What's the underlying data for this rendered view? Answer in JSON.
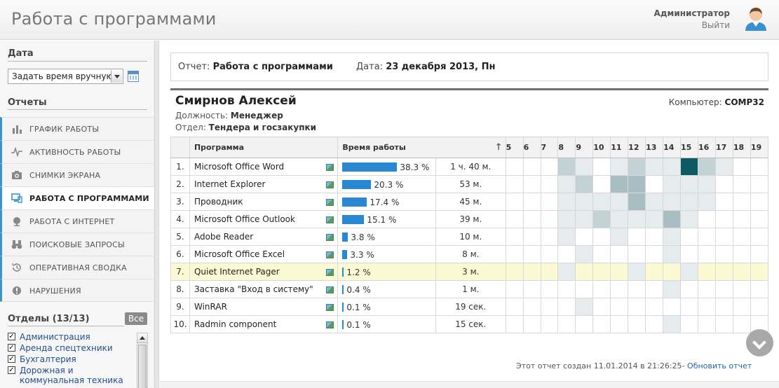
{
  "header": {
    "title": "Работа с программами",
    "user_name": "Администратор",
    "logout": "Выйти"
  },
  "sidebar": {
    "date_heading": "Дата",
    "date_select_value": "Задать время вручную...",
    "reports_heading": "Отчеты",
    "items": [
      {
        "label": "ГРАФИК РАБОТЫ",
        "icon": "bar-chart-icon",
        "active": false
      },
      {
        "label": "АКТИВНОСТЬ РАБОТЫ",
        "icon": "pulse-icon",
        "active": false
      },
      {
        "label": "СНИМКИ ЭКРАНА",
        "icon": "camera-icon",
        "active": false
      },
      {
        "label": "РАБОТА С ПРОГРАММАМИ",
        "icon": "monitor-icon",
        "active": true
      },
      {
        "label": "РАБОТА С ИНТЕРНЕТ",
        "icon": "globe-icon",
        "active": false
      },
      {
        "label": "ПОИСКОВЫЕ ЗАПРОСЫ",
        "icon": "binoculars-icon",
        "active": false
      },
      {
        "label": "ОПЕРАТИВНАЯ СВОДКА",
        "icon": "history-icon",
        "active": false
      },
      {
        "label": "НАРУШЕНИЯ",
        "icon": "alert-icon",
        "active": false
      }
    ],
    "departments_heading": "Отделы (13/13)",
    "all_button": "Все",
    "departments": [
      {
        "label": "Администрация",
        "checked": true
      },
      {
        "label": "Аренда спецтехники",
        "checked": true
      },
      {
        "label": "Бухгалтерия",
        "checked": true
      },
      {
        "label": "Дорожная и коммунальная техника",
        "checked": true
      }
    ]
  },
  "report": {
    "report_label": "Отчет:",
    "report_value": "Работа с программами",
    "date_label": "Дата:",
    "date_value": "23 декабря 2013, Пн",
    "employee_name": "Смирнов Алексей",
    "position_label": "Должность:",
    "position_value": "Менеджер",
    "department_label": "Отдел:",
    "department_value": "Тендера и госзакупки",
    "computer_label": "Компьютер:",
    "computer_value": "COMP32",
    "columns": {
      "program": "Программа",
      "time": "Время работы"
    },
    "hours": [
      "5",
      "6",
      "7",
      "8",
      "9",
      "10",
      "11",
      "12",
      "13",
      "14",
      "15",
      "16",
      "17",
      "18",
      "19"
    ],
    "rows": [
      {
        "num": "1.",
        "program": "Microsoft Office Word",
        "pct_label": "38.3 %",
        "pct": 38.3,
        "duration": "1 ч. 40 м.",
        "heat": [
          0,
          0,
          0,
          2,
          1,
          0,
          1,
          2,
          1,
          1,
          4,
          2,
          1,
          0,
          0
        ],
        "highlight": false
      },
      {
        "num": "2.",
        "program": "Internet Explorer",
        "pct_label": "20.3 %",
        "pct": 20.3,
        "duration": "53 м.",
        "heat": [
          0,
          0,
          0,
          1,
          2,
          0,
          3,
          3,
          0,
          1,
          1,
          1,
          0,
          0,
          0
        ],
        "highlight": false
      },
      {
        "num": "3.",
        "program": "Проводник",
        "pct_label": "17.4 %",
        "pct": 17.4,
        "duration": "45 м.",
        "heat": [
          0,
          0,
          0,
          1,
          1,
          1,
          1,
          3,
          1,
          1,
          1,
          1,
          0,
          0,
          0
        ],
        "highlight": false
      },
      {
        "num": "4.",
        "program": "Microsoft Office Outlook",
        "pct_label": "15.1 %",
        "pct": 15.1,
        "duration": "39 м.",
        "heat": [
          0,
          0,
          0,
          1,
          1,
          2,
          1,
          1,
          1,
          3,
          1,
          0,
          0,
          0,
          0
        ],
        "highlight": false
      },
      {
        "num": "5.",
        "program": "Adobe Reader",
        "pct_label": "3.8 %",
        "pct": 3.8,
        "duration": "10 м.",
        "heat": [
          0,
          0,
          0,
          1,
          0,
          0,
          1,
          0,
          0,
          1,
          0,
          0,
          0,
          0,
          0
        ],
        "highlight": false
      },
      {
        "num": "6.",
        "program": "Microsoft Office Excel",
        "pct_label": "3.3 %",
        "pct": 3.3,
        "duration": "8 м.",
        "heat": [
          0,
          0,
          0,
          0,
          1,
          0,
          0,
          0,
          0,
          1,
          0,
          0,
          0,
          0,
          0
        ],
        "highlight": false
      },
      {
        "num": "7.",
        "program": "Quiet Internet Pager",
        "pct_label": "1.2 %",
        "pct": 1.2,
        "duration": "3 м.",
        "heat": [
          0,
          0,
          0,
          1,
          0,
          0,
          0,
          1,
          0,
          0,
          1,
          0,
          0,
          0,
          0
        ],
        "highlight": true
      },
      {
        "num": "8.",
        "program": "Заставка \"Вход в систему\"",
        "pct_label": "0.4 %",
        "pct": 0.4,
        "duration": "1 м.",
        "heat": [
          0,
          0,
          0,
          0,
          0,
          0,
          0,
          0,
          0,
          1,
          0,
          0,
          0,
          0,
          0
        ],
        "highlight": false
      },
      {
        "num": "9.",
        "program": "WinRAR",
        "pct_label": "0.1 %",
        "pct": 0.1,
        "duration": "19 сек.",
        "heat": [
          0,
          0,
          0,
          0,
          1,
          0,
          0,
          0,
          0,
          0,
          0,
          0,
          0,
          0,
          0
        ],
        "highlight": false
      },
      {
        "num": "10.",
        "program": "Radmin component",
        "pct_label": "0.1 %",
        "pct": 0.1,
        "duration": "15 сек.",
        "heat": [
          0,
          0,
          0,
          0,
          0,
          0,
          0,
          0,
          0,
          1,
          0,
          0,
          0,
          0,
          0
        ],
        "highlight": false
      }
    ],
    "heat_colors": [
      "transparent",
      "#e6eced",
      "#c3d2d5",
      "#a9bec3",
      "#0e5a63"
    ],
    "footer_text": "Этот отчет создан 11.01.2014 в 21:26:25-",
    "refresh_link": "Обновить отчет"
  }
}
